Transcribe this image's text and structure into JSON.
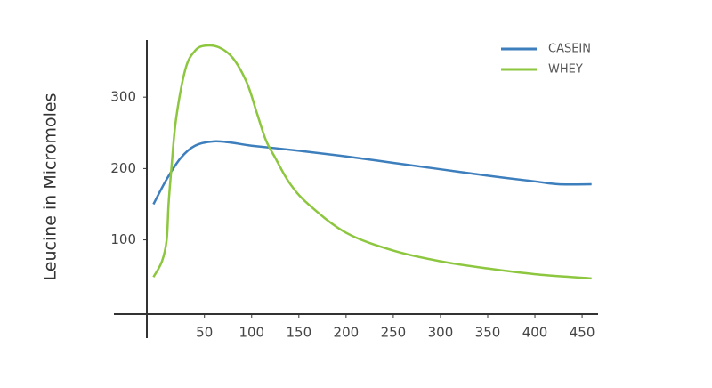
{
  "chart_data": {
    "type": "line",
    "y_label": "Leucine in Micromoles",
    "series": [
      {
        "name": "CASEIN",
        "color": "#3d7ebd",
        "x": [
          -4,
          10,
          25,
          40,
          60,
          80,
          100,
          150,
          200,
          250,
          300,
          350,
          400,
          425,
          460
        ],
        "values": [
          150,
          185,
          215,
          232,
          238,
          236,
          232,
          225,
          217,
          208,
          199,
          190,
          182,
          178,
          178
        ]
      },
      {
        "name": "WHEY",
        "color": "#8dc63f",
        "x": [
          -4,
          5,
          10,
          12,
          15,
          20,
          30,
          40,
          50,
          65,
          80,
          95,
          105,
          115,
          125,
          140,
          160,
          200,
          250,
          300,
          350,
          400,
          460
        ],
        "values": [
          48,
          70,
          100,
          150,
          200,
          270,
          340,
          365,
          372,
          370,
          355,
          320,
          280,
          240,
          215,
          180,
          150,
          110,
          85,
          70,
          60,
          52,
          46
        ]
      }
    ],
    "xlim": [
      -11,
      465
    ],
    "ylim": [
      -4,
      380
    ],
    "xticks": [
      50,
      100,
      150,
      200,
      250,
      300,
      350,
      400,
      450
    ],
    "yticks": [
      100,
      200,
      300
    ],
    "legend": "upper right"
  }
}
